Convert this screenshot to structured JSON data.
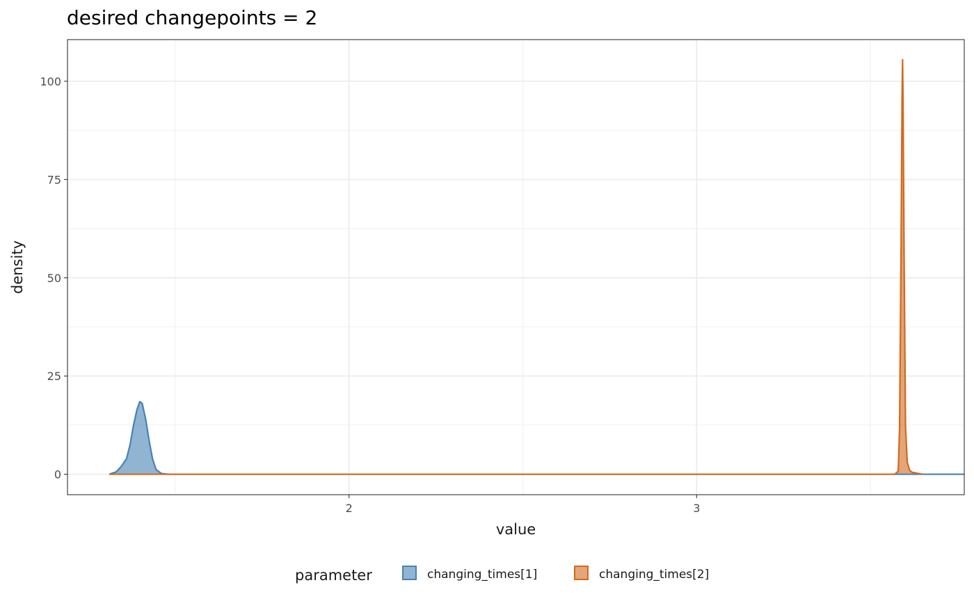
{
  "chart_data": {
    "type": "area",
    "title": "desired changepoints = 2",
    "xlabel": "value",
    "ylabel": "density",
    "xlim": [
      1.19,
      3.77
    ],
    "ylim": [
      -5.2,
      110.6
    ],
    "x_ticks": [
      2,
      3
    ],
    "x_tick_labels": [
      "2",
      "3"
    ],
    "x_minor_ticks": [
      1.5,
      2.5,
      3.5
    ],
    "y_ticks": [
      0,
      25,
      50,
      75,
      100
    ],
    "y_tick_labels": [
      "0",
      "25",
      "50",
      "75",
      "100"
    ],
    "y_minor_ticks": [
      12.5,
      37.5,
      62.5,
      87.5
    ],
    "grid": true,
    "legend": {
      "title": "parameter",
      "position": "bottom"
    },
    "series": [
      {
        "name": "changing_times[1]",
        "color": "#4682b4",
        "points": [
          [
            1.31,
            0
          ],
          [
            1.33,
            0.6
          ],
          [
            1.345,
            2.0
          ],
          [
            1.36,
            4.0
          ],
          [
            1.37,
            7.5
          ],
          [
            1.38,
            12.5
          ],
          [
            1.39,
            16.5
          ],
          [
            1.398,
            18.5
          ],
          [
            1.405,
            18.0
          ],
          [
            1.415,
            14.0
          ],
          [
            1.425,
            8.5
          ],
          [
            1.435,
            3.8
          ],
          [
            1.445,
            1.2
          ],
          [
            1.46,
            0.2
          ],
          [
            1.48,
            0
          ],
          [
            3.77,
            0
          ]
        ]
      },
      {
        "name": "changing_times[2]",
        "color": "#d2691e",
        "points": [
          [
            1.31,
            0
          ],
          [
            3.57,
            0
          ],
          [
            3.58,
            0.8
          ],
          [
            3.584,
            12.0
          ],
          [
            3.588,
            55.0
          ],
          [
            3.591,
            95.0
          ],
          [
            3.5925,
            105.5
          ],
          [
            3.594,
            95.0
          ],
          [
            3.597,
            55.0
          ],
          [
            3.601,
            12.0
          ],
          [
            3.606,
            3.0
          ],
          [
            3.613,
            1.0
          ],
          [
            3.62,
            0.5
          ],
          [
            3.65,
            0
          ]
        ]
      }
    ]
  }
}
